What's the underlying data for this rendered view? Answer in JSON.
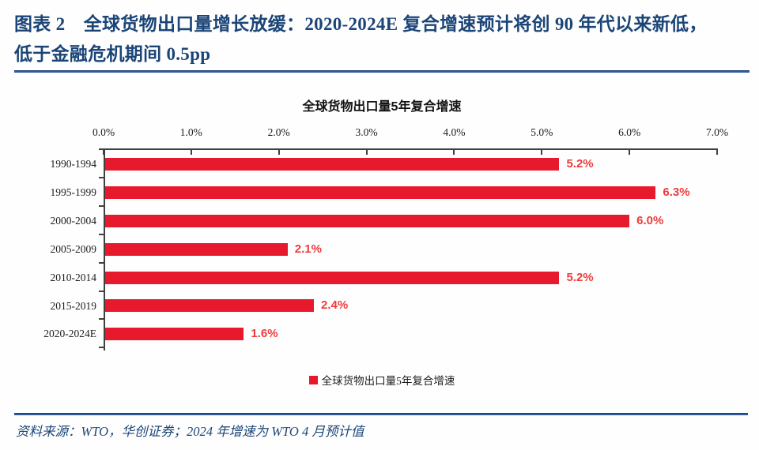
{
  "figure": {
    "caption_line1": "图表 2　全球货物出口量增长放缓：2020-2024E 复合增速预计将创 90 年代以来新低，",
    "caption_line2": "低于金融危机期间 0.5pp",
    "source": "资料来源：WTO，华创证券；2024 年增速为 WTO 4 月预计值"
  },
  "chart_data": {
    "type": "bar",
    "orientation": "horizontal",
    "title": "全球货物出口量5年复合增速",
    "categories": [
      "1990-1994",
      "1995-1999",
      "2000-2004",
      "2005-2009",
      "2010-2014",
      "2015-2019",
      "2020-2024E"
    ],
    "values": [
      5.2,
      6.3,
      6.0,
      2.1,
      5.2,
      2.4,
      1.6
    ],
    "value_labels": [
      "5.2%",
      "6.3%",
      "6.0%",
      "2.1%",
      "5.2%",
      "2.4%",
      "1.6%"
    ],
    "xlabel": "",
    "ylabel": "",
    "xlim": [
      0,
      7
    ],
    "x_ticks": [
      0,
      1,
      2,
      3,
      4,
      5,
      6,
      7
    ],
    "x_tick_labels": [
      "0.0%",
      "1.0%",
      "2.0%",
      "3.0%",
      "4.0%",
      "5.0%",
      "6.0%",
      "7.0%"
    ],
    "x_axis_position": "top",
    "grid": false,
    "legend_label": "全球货物出口量5年复合增速",
    "legend_position": "bottom"
  },
  "colors": {
    "bar_red": "#e7192c",
    "value_label_red": "#ee3b3b",
    "caption_navy": "#1b4577",
    "rule_navy": "#2e5b9b",
    "axis_gray": "#404040",
    "text_black": "#1c1c1c"
  }
}
